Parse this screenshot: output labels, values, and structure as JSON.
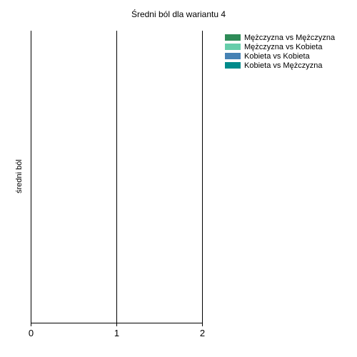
{
  "chart_data": {
    "type": "bar",
    "title": "Średni ból dla wariantu 4",
    "ylabel": "średni ból",
    "xlabel": "",
    "x_ticks": [
      "0",
      "1",
      "2"
    ],
    "xlim": [
      0,
      2
    ],
    "grid": "vertical",
    "legend_position": "top-right",
    "series": [
      {
        "name": "Mężczyzna vs Mężczyzna",
        "color": "#2e8b57",
        "values": []
      },
      {
        "name": "Mężczyzna vs Kobieta",
        "color": "#66cdaa",
        "values": []
      },
      {
        "name": "Kobieta vs Kobieta",
        "color": "#4682b4",
        "values": []
      },
      {
        "name": "Kobieta vs Mężczyzna",
        "color": "#008b8b",
        "values": []
      }
    ]
  }
}
